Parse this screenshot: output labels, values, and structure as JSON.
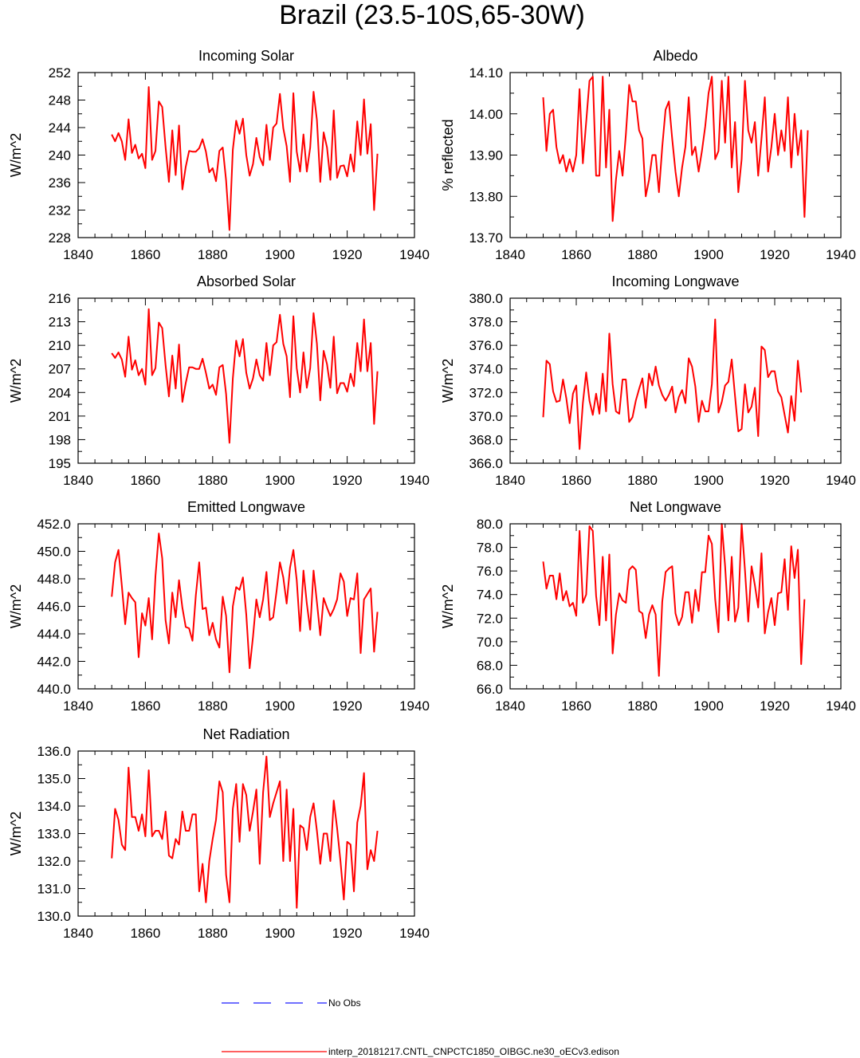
{
  "figure": {
    "title": "Brazil (23.5-10S,65-30W)",
    "legend": {
      "no_obs_label": "No Obs",
      "no_obs_color": "#1a1aff",
      "model_label": "interp_20181217.CNTL_CNPCTC1850_OIBGC.ne30_oECv3.edison",
      "model_color": "#ff0000"
    }
  },
  "chart_data": [
    {
      "type": "line",
      "title": "Incoming Solar",
      "ylabel": "W/m^2",
      "xlim": [
        1840,
        1940
      ],
      "ylim": [
        228,
        252
      ],
      "xticks": [
        "1840",
        "1860",
        "1880",
        "1900",
        "1920",
        "1940"
      ],
      "yticks": [
        "228",
        "232",
        "236",
        "240",
        "244",
        "248",
        "252"
      ],
      "series": [
        {
          "color": "#ff0000",
          "x0": 1850,
          "values": [
            243.0,
            242.0,
            243.2,
            242.0,
            239.3,
            245.2,
            240.3,
            241.5,
            239.5,
            240.2,
            238.1,
            249.9,
            239.3,
            240.6,
            247.8,
            247.0,
            241.2,
            236.1,
            243.6,
            237.1,
            244.3,
            235.0,
            238.3,
            240.6,
            240.5,
            240.5,
            241.0,
            242.3,
            240.5,
            237.5,
            238.1,
            236.2,
            240.6,
            241.1,
            236.3,
            229.1,
            240.8,
            245.0,
            243.1,
            245.3,
            240.0,
            237.0,
            238.7,
            242.5,
            239.7,
            238.5,
            244.4,
            239.3,
            244.0,
            244.6,
            248.9,
            243.9,
            241.3,
            236.1,
            249.0,
            240.5,
            237.6,
            243.0,
            237.6,
            241.1,
            249.2,
            245.1,
            236.1,
            243.3,
            241.1,
            236.4,
            246.5,
            236.7,
            238.4,
            238.5,
            236.9,
            240.1,
            237.6,
            244.9,
            240.0,
            248.1,
            240.2,
            244.5,
            232.0,
            240.2
          ]
        }
      ]
    },
    {
      "type": "line",
      "title": "Albedo",
      "ylabel": "% reflected",
      "xlim": [
        1840,
        1940
      ],
      "ylim": [
        13.7,
        14.1
      ],
      "xticks": [
        "1840",
        "1860",
        "1880",
        "1900",
        "1920",
        "1940"
      ],
      "yticks": [
        "13.70",
        "13.80",
        "13.90",
        "14.00",
        "14.10"
      ],
      "series": [
        {
          "color": "#ff0000",
          "x0": 1850,
          "values": [
            14.04,
            13.91,
            14.0,
            14.01,
            13.92,
            13.88,
            13.9,
            13.86,
            13.89,
            13.86,
            13.9,
            14.06,
            13.88,
            13.98,
            14.08,
            14.09,
            13.85,
            13.85,
            14.09,
            13.87,
            14.01,
            13.74,
            13.84,
            13.91,
            13.85,
            13.95,
            14.07,
            14.03,
            14.03,
            13.96,
            13.94,
            13.8,
            13.84,
            13.9,
            13.9,
            13.81,
            13.92,
            14.01,
            14.03,
            13.94,
            13.86,
            13.8,
            13.87,
            13.92,
            14.04,
            13.9,
            13.92,
            13.86,
            13.91,
            13.97,
            14.05,
            14.09,
            13.89,
            13.91,
            14.08,
            13.93,
            14.09,
            13.87,
            13.98,
            13.81,
            13.89,
            14.08,
            13.96,
            13.93,
            13.98,
            13.85,
            13.94,
            14.04,
            13.86,
            13.92,
            14.0,
            13.9,
            13.96,
            13.91,
            14.04,
            13.87,
            14.0,
            13.9,
            13.96,
            13.75,
            13.96
          ]
        }
      ]
    },
    {
      "type": "line",
      "title": "Absorbed Solar",
      "ylabel": "W/m^2",
      "xlim": [
        1840,
        1940
      ],
      "ylim": [
        195,
        216
      ],
      "xticks": [
        "1840",
        "1860",
        "1880",
        "1900",
        "1920",
        "1940"
      ],
      "yticks": [
        "195",
        "198",
        "201",
        "204",
        "207",
        "210",
        "213",
        "216"
      ],
      "series": [
        {
          "color": "#ff0000",
          "x0": 1850,
          "values": [
            209.0,
            208.4,
            209.1,
            208.2,
            206.0,
            211.1,
            206.9,
            208.1,
            206.2,
            207.0,
            205.0,
            214.6,
            206.2,
            207.1,
            212.9,
            212.2,
            207.5,
            203.5,
            208.7,
            204.5,
            210.1,
            202.8,
            205.2,
            207.2,
            207.2,
            207.0,
            207.0,
            208.3,
            206.5,
            204.5,
            205.0,
            203.7,
            207.2,
            207.5,
            203.8,
            197.6,
            205.8,
            210.6,
            208.6,
            210.8,
            206.5,
            204.5,
            205.8,
            208.2,
            206.2,
            205.5,
            210.3,
            206.2,
            210.0,
            210.4,
            213.9,
            210.2,
            208.6,
            203.4,
            213.7,
            207.1,
            204.0,
            209.1,
            204.6,
            207.1,
            214.1,
            210.2,
            203.0,
            209.3,
            207.6,
            204.6,
            211.1,
            203.9,
            205.2,
            205.2,
            204.1,
            206.4,
            204.8,
            210.3,
            206.7,
            213.3,
            206.7,
            210.3,
            200.0,
            206.7
          ]
        }
      ]
    },
    {
      "type": "line",
      "title": "Incoming Longwave",
      "ylabel": "W/m^2",
      "xlim": [
        1840,
        1940
      ],
      "ylim": [
        366.0,
        380.0
      ],
      "xticks": [
        "1840",
        "1860",
        "1880",
        "1900",
        "1920",
        "1940"
      ],
      "yticks": [
        "366.0",
        "368.0",
        "370.0",
        "372.0",
        "374.0",
        "376.0",
        "378.0",
        "380.0"
      ],
      "series": [
        {
          "color": "#ff0000",
          "x0": 1850,
          "values": [
            369.9,
            374.7,
            374.4,
            372.1,
            371.2,
            371.3,
            373.1,
            371.5,
            369.4,
            371.9,
            372.6,
            367.2,
            371.1,
            373.7,
            371.3,
            370.1,
            371.9,
            370.2,
            373.6,
            370.4,
            377.0,
            372.7,
            370.4,
            370.2,
            373.1,
            373.1,
            369.5,
            369.9,
            371.3,
            372.3,
            373.2,
            370.7,
            373.6,
            372.6,
            374.2,
            372.6,
            371.8,
            371.3,
            371.8,
            372.5,
            370.3,
            371.6,
            372.2,
            371.1,
            374.9,
            374.2,
            372.5,
            369.5,
            371.3,
            370.4,
            370.4,
            372.7,
            378.2,
            370.3,
            371.2,
            372.6,
            372.9,
            374.8,
            371.7,
            368.7,
            368.9,
            372.7,
            370.3,
            370.8,
            372.4,
            368.3,
            375.9,
            375.6,
            373.3,
            373.8,
            373.8,
            372.1,
            371.6,
            370.1,
            368.6,
            371.7,
            369.6,
            374.7,
            372.0
          ]
        }
      ]
    },
    {
      "type": "line",
      "title": "Emitted Longwave",
      "ylabel": "W/m^2",
      "xlim": [
        1840,
        1940
      ],
      "ylim": [
        440.0,
        452.0
      ],
      "xticks": [
        "1840",
        "1860",
        "1880",
        "1900",
        "1920",
        "1940"
      ],
      "yticks": [
        "440.0",
        "442.0",
        "444.0",
        "446.0",
        "448.0",
        "450.0",
        "452.0"
      ],
      "series": [
        {
          "color": "#ff0000",
          "x0": 1850,
          "values": [
            446.7,
            449.2,
            450.1,
            447.5,
            444.7,
            447.0,
            446.6,
            446.3,
            442.3,
            445.5,
            444.6,
            446.6,
            443.6,
            448.2,
            451.3,
            449.5,
            445.0,
            443.3,
            447.0,
            445.2,
            447.9,
            445.9,
            444.5,
            444.4,
            443.5,
            446.8,
            449.2,
            445.8,
            445.9,
            443.9,
            444.8,
            443.6,
            443.0,
            446.7,
            445.3,
            441.2,
            446.0,
            447.4,
            447.2,
            448.1,
            445.4,
            441.5,
            443.8,
            446.5,
            445.2,
            446.5,
            448.5,
            445.0,
            445.2,
            447.1,
            449.2,
            448.1,
            446.2,
            448.8,
            450.1,
            447.9,
            444.2,
            448.6,
            446.2,
            444.3,
            448.6,
            446.3,
            443.9,
            446.6,
            445.9,
            445.3,
            445.8,
            446.5,
            448.4,
            447.8,
            445.3,
            446.6,
            446.5,
            448.4,
            442.6,
            446.5,
            446.9,
            447.3,
            442.7,
            445.6
          ]
        }
      ]
    },
    {
      "type": "line",
      "title": "Net Longwave",
      "ylabel": "W/m^2",
      "xlim": [
        1840,
        1940
      ],
      "ylim": [
        66.0,
        80.0
      ],
      "xticks": [
        "1840",
        "1860",
        "1880",
        "1900",
        "1920",
        "1940"
      ],
      "yticks": [
        "66.0",
        "68.0",
        "70.0",
        "72.0",
        "74.0",
        "76.0",
        "78.0",
        "80.0"
      ],
      "series": [
        {
          "color": "#ff0000",
          "x0": 1850,
          "values": [
            76.8,
            74.5,
            75.6,
            75.6,
            73.6,
            75.8,
            73.5,
            74.3,
            73.0,
            73.3,
            72.2,
            79.4,
            73.3,
            74.0,
            79.8,
            79.4,
            73.9,
            71.4,
            77.2,
            71.8,
            77.4,
            69.0,
            72.3,
            74.1,
            73.5,
            73.3,
            76.1,
            76.4,
            76.1,
            72.6,
            72.4,
            70.3,
            72.3,
            73.1,
            72.3,
            67.1,
            73.4,
            75.9,
            76.2,
            76.4,
            72.4,
            71.4,
            72.1,
            74.2,
            74.2,
            71.6,
            74.4,
            72.6,
            75.9,
            75.9,
            79.0,
            78.3,
            73.6,
            70.8,
            80.0,
            76.4,
            71.8,
            77.2,
            71.7,
            72.9,
            80.0,
            76.1,
            71.7,
            76.4,
            74.8,
            72.9,
            77.5,
            70.7,
            72.5,
            73.7,
            71.4,
            74.1,
            74.2,
            77.0,
            72.7,
            78.1,
            75.4,
            77.8,
            68.1,
            73.6
          ]
        }
      ]
    },
    {
      "type": "line",
      "title": "Net Radiation",
      "ylabel": "W/m^2",
      "xlim": [
        1840,
        1940
      ],
      "ylim": [
        130.0,
        136.0
      ],
      "xticks": [
        "1840",
        "1860",
        "1880",
        "1900",
        "1920",
        "1940"
      ],
      "yticks": [
        "130.0",
        "131.0",
        "132.0",
        "133.0",
        "134.0",
        "135.0",
        "136.0"
      ],
      "series": [
        {
          "color": "#ff0000",
          "x0": 1850,
          "values": [
            132.1,
            133.9,
            133.5,
            132.6,
            132.4,
            135.4,
            133.6,
            133.6,
            133.1,
            133.7,
            132.9,
            135.3,
            132.9,
            133.1,
            133.1,
            132.8,
            133.8,
            132.2,
            132.1,
            132.8,
            132.6,
            133.8,
            133.1,
            133.1,
            133.7,
            133.7,
            130.9,
            131.9,
            130.5,
            132.0,
            132.8,
            133.5,
            134.9,
            134.5,
            131.5,
            130.5,
            133.9,
            134.8,
            132.7,
            134.8,
            134.4,
            133.1,
            133.8,
            134.6,
            131.9,
            134.5,
            135.8,
            133.6,
            134.1,
            134.5,
            134.9,
            132.0,
            134.6,
            132.0,
            133.9,
            130.3,
            133.3,
            133.2,
            132.4,
            133.6,
            134.1,
            133.1,
            131.9,
            133.0,
            133.0,
            132.0,
            134.2,
            133.2,
            132.0,
            130.6,
            132.7,
            132.6,
            130.9,
            133.4,
            134.0,
            135.2,
            131.7,
            132.4,
            132.0,
            133.1
          ]
        }
      ]
    }
  ]
}
